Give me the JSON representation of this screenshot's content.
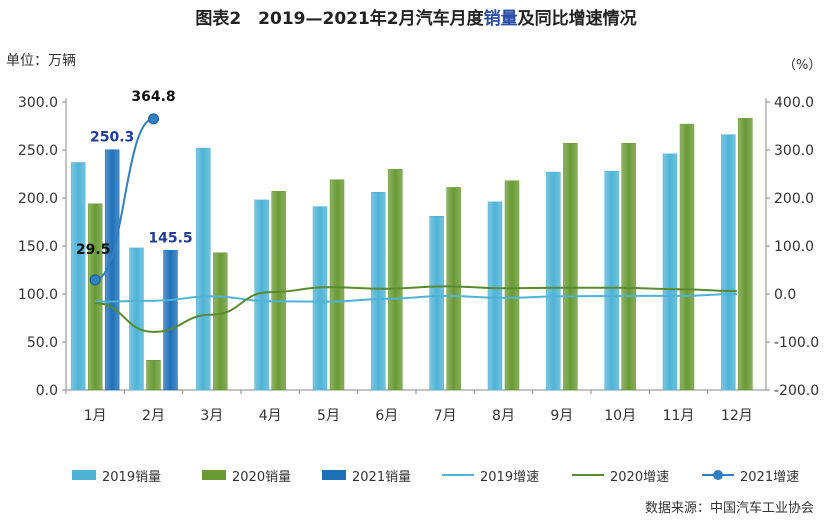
{
  "title": {
    "prefix": "图表2　2019—2021年2月汽车月度",
    "highlight": "销量",
    "suffix": "及同比增速情况"
  },
  "y_left_unit": "单位：万辆",
  "y_right_unit": "（%）",
  "source": "数据来源：中国汽车工业协会",
  "chart_data": {
    "type": "bar",
    "categories": [
      "1月",
      "2月",
      "3月",
      "4月",
      "5月",
      "6月",
      "7月",
      "8月",
      "9月",
      "10月",
      "11月",
      "12月"
    ],
    "ylim_left": [
      0,
      300
    ],
    "ylim_right": [
      -200,
      400
    ],
    "yticks_left": [
      "0.0",
      "50.0",
      "100.0",
      "150.0",
      "200.0",
      "250.0",
      "300.0"
    ],
    "yticks_right": [
      "-200.0",
      "-100.0",
      "0.0",
      "100.0",
      "200.0",
      "300.0",
      "400.0"
    ],
    "series": [
      {
        "name": "2019销量",
        "kind": "bar",
        "axis": "left",
        "color": "#4fb3d6",
        "values": [
          237,
          148,
          252,
          198,
          191,
          206,
          181,
          196,
          227,
          228,
          246,
          266
        ]
      },
      {
        "name": "2020销量",
        "kind": "bar",
        "axis": "left",
        "color": "#6a9a35",
        "values": [
          194,
          31,
          143,
          207,
          219,
          230,
          211,
          218,
          257,
          257,
          277,
          283
        ]
      },
      {
        "name": "2021销量",
        "kind": "bar",
        "axis": "left",
        "color": "#1e70b8",
        "values": [
          250.3,
          145.5,
          null,
          null,
          null,
          null,
          null,
          null,
          null,
          null,
          null,
          null
        ]
      },
      {
        "name": "2019增速",
        "kind": "line",
        "axis": "right",
        "color": "#4fb3d6",
        "values": [
          -16,
          -14,
          -5,
          -15,
          -16,
          -10,
          -4,
          -8,
          -5,
          -4,
          -4,
          0
        ]
      },
      {
        "name": "2020增速",
        "kind": "line",
        "axis": "right",
        "color": "#5a8a30",
        "values": [
          -19,
          -79,
          -43,
          4,
          14,
          11,
          16,
          12,
          13,
          13,
          10,
          6
        ]
      },
      {
        "name": "2021增速",
        "kind": "line-marker",
        "axis": "right",
        "color": "#2f7fc1",
        "values": [
          29.5,
          364.8,
          null,
          null,
          null,
          null,
          null,
          null,
          null,
          null,
          null,
          null
        ]
      }
    ],
    "data_labels": [
      {
        "text": "250.3",
        "series": 2,
        "index": 0,
        "color": "#1f3c99"
      },
      {
        "text": "145.5",
        "series": 2,
        "index": 1,
        "color": "#1f3c99"
      },
      {
        "text": "29.5",
        "series": 5,
        "index": 0,
        "color": "#111111"
      },
      {
        "text": "364.8",
        "series": 5,
        "index": 1,
        "color": "#111111"
      }
    ],
    "legend_position": "bottom",
    "grid": false
  }
}
